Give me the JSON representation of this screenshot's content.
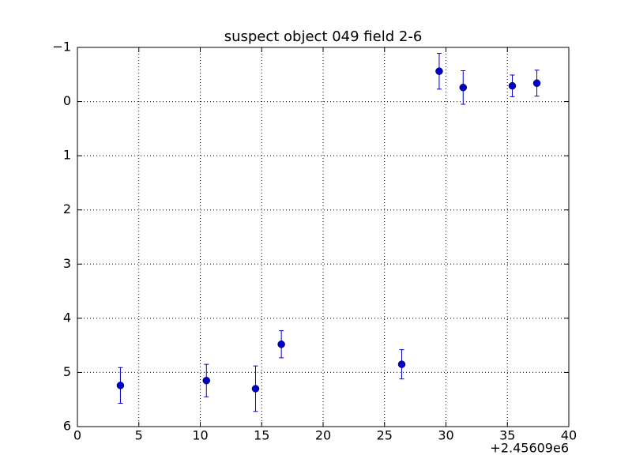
{
  "chart_data": {
    "type": "errorbar",
    "title": "suspect object 049 field 2-6",
    "x_offset_label": "+2.45609e6",
    "series": [
      {
        "color": "#0000cc",
        "x": [
          3.5,
          10.5,
          14.5,
          16.6,
          26.4,
          29.45,
          31.4,
          35.4,
          37.4
        ],
        "values": [
          5.24,
          5.15,
          5.3,
          4.48,
          4.85,
          -0.56,
          -0.26,
          -0.29,
          -0.34
        ],
        "errors": [
          0.33,
          0.3,
          0.42,
          0.25,
          0.27,
          0.33,
          0.31,
          0.2,
          0.24
        ]
      }
    ],
    "xlim": [
      0,
      40
    ],
    "xticks": [
      0,
      5,
      10,
      15,
      20,
      25,
      30,
      35,
      40
    ],
    "ylim": [
      -1,
      6
    ],
    "y_inverted": true,
    "yticks": [
      {
        "value": -1,
        "label": "−1"
      },
      0,
      1,
      2,
      3,
      4,
      5,
      6
    ],
    "grid": true
  }
}
